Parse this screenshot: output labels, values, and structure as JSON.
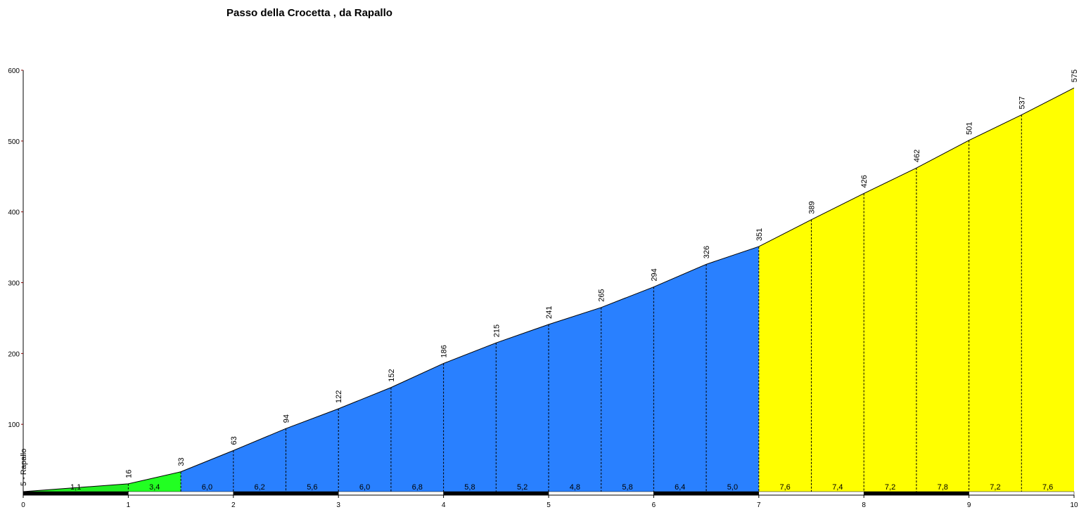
{
  "chart_data": {
    "type": "elevation-profile",
    "title": "Passo della Crocetta , da Rapallo",
    "x": [
      0,
      1,
      1.5,
      2,
      2.5,
      3,
      3.5,
      4,
      4.5,
      5,
      5.5,
      6,
      6.5,
      7,
      7.5,
      8,
      8.5,
      9,
      9.5,
      10
    ],
    "elevation": {
      "values": [
        5,
        16,
        33,
        63,
        94,
        122,
        152,
        186,
        215,
        241,
        265,
        294,
        326,
        351,
        389,
        426,
        462,
        501,
        537,
        575
      ],
      "value_labels": [
        "5 - Rapallo",
        "16",
        "33",
        "63",
        "94",
        "122",
        "152",
        "186",
        "215",
        "241",
        "265",
        "294",
        "326",
        "351",
        "389",
        "426",
        "462",
        "501",
        "537",
        "575"
      ]
    },
    "gradient": {
      "values": [
        1.1,
        3.4,
        6.0,
        6.2,
        5.6,
        6.0,
        6.8,
        5.8,
        5.2,
        4.8,
        5.8,
        6.4,
        5.0,
        7.6,
        7.4,
        7.2,
        7.8,
        7.2,
        7.6
      ],
      "value_labels": [
        "1,1",
        "3,4",
        "6,0",
        "6,2",
        "5,6",
        "6,0",
        "6,8",
        "5,8",
        "5,2",
        "4,8",
        "5,8",
        "6,4",
        "5,0",
        "7,6",
        "7,4",
        "7,2",
        "7,8",
        "7,2",
        "7,6"
      ],
      "colors": [
        "#22ee22",
        "#22ff22",
        "#2980ff",
        "#2980ff",
        "#2980ff",
        "#2980ff",
        "#2980ff",
        "#2980ff",
        "#2980ff",
        "#2980ff",
        "#2980ff",
        "#2980ff",
        "#2980ff",
        "#ffff00",
        "#ffff00",
        "#ffff00",
        "#ffff00",
        "#ffff00",
        "#ffff00"
      ]
    },
    "xlim": [
      0,
      10
    ],
    "xticks": [
      0,
      1,
      2,
      3,
      4,
      5,
      6,
      7,
      8,
      9,
      10
    ],
    "ylim": [
      0,
      600
    ],
    "yticks": [
      100,
      200,
      300,
      400,
      500,
      600
    ]
  }
}
